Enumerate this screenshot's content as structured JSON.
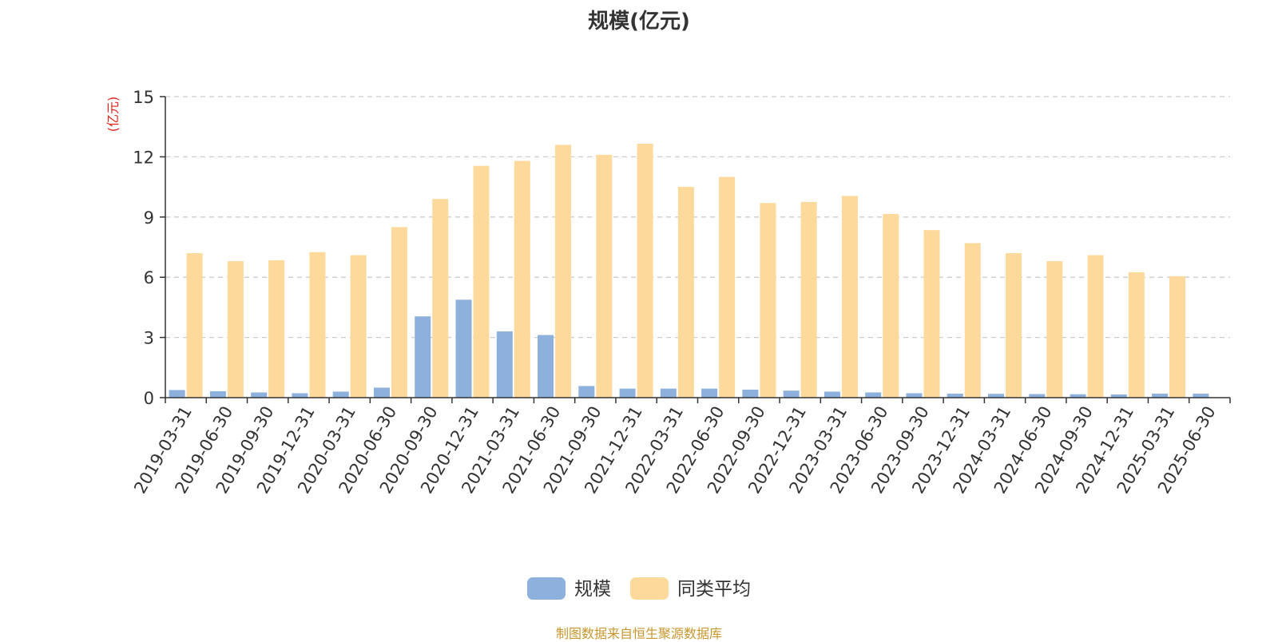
{
  "chart_data": {
    "type": "bar",
    "title": "规模(亿元)",
    "ylabel": "(亿元)",
    "xlabel": "",
    "ylim": [
      0,
      15
    ],
    "yticks": [
      0,
      3,
      6,
      9,
      12,
      15
    ],
    "grid": true,
    "legend_position": "bottom-center",
    "categories": [
      "2019-03-31",
      "2019-06-30",
      "2019-09-30",
      "2019-12-31",
      "2020-03-31",
      "2020-06-30",
      "2020-09-30",
      "2020-12-31",
      "2021-03-31",
      "2021-06-30",
      "2021-09-30",
      "2021-12-31",
      "2022-03-31",
      "2022-06-30",
      "2022-09-30",
      "2022-12-31",
      "2023-03-31",
      "2023-06-30",
      "2023-09-30",
      "2023-12-31",
      "2024-03-31",
      "2024-06-30",
      "2024-09-30",
      "2024-12-31",
      "2025-03-31",
      "2025-06-30"
    ],
    "series": [
      {
        "name": "规模",
        "color": "#8eb0dc",
        "values": [
          0.38,
          0.32,
          0.26,
          0.22,
          0.3,
          0.5,
          4.05,
          4.88,
          3.3,
          3.12,
          0.58,
          0.45,
          0.45,
          0.45,
          0.4,
          0.35,
          0.3,
          0.26,
          0.22,
          0.2,
          0.19,
          0.18,
          0.17,
          0.16,
          0.2,
          0.2
        ]
      },
      {
        "name": "同类平均",
        "color": "#fdd99b",
        "values": [
          7.2,
          6.8,
          6.85,
          7.25,
          7.1,
          8.5,
          9.9,
          11.55,
          11.8,
          12.6,
          12.1,
          12.65,
          10.5,
          11.0,
          9.7,
          9.75,
          10.05,
          9.15,
          8.35,
          7.7,
          7.2,
          6.8,
          7.1,
          6.25,
          6.05,
          null
        ]
      }
    ]
  },
  "source_note": "制图数据来自恒生聚源数据库"
}
